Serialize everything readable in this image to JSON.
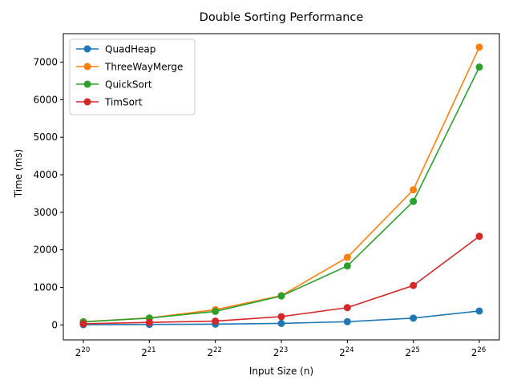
{
  "chart_data": {
    "type": "line",
    "title": "Double Sorting Performance",
    "xlabel": "Input Size (n)",
    "ylabel": "Time (ms)",
    "x_scale": "log2",
    "x_tick_base": "2",
    "x_tick_exponents": [
      "20",
      "21",
      "22",
      "23",
      "24",
      "25",
      "26"
    ],
    "x": [
      1048576,
      2097152,
      4194304,
      8388608,
      16777216,
      33554432,
      67108864
    ],
    "ylim": [
      -400,
      7760
    ],
    "y_ticks": [
      0,
      1000,
      2000,
      3000,
      4000,
      5000,
      6000,
      7000
    ],
    "grid": false,
    "legend_position": "top-left",
    "series": [
      {
        "name": "QuadHeap",
        "color": "#1f77b4",
        "values": [
          5,
          12,
          20,
          40,
          85,
          180,
          370
        ]
      },
      {
        "name": "ThreeWayMerge",
        "color": "#ff7f0e",
        "values": [
          85,
          185,
          405,
          780,
          1800,
          3600,
          7400
        ]
      },
      {
        "name": "QuickSort",
        "color": "#2ca02c",
        "values": [
          80,
          180,
          360,
          770,
          1570,
          3290,
          6870
        ]
      },
      {
        "name": "TimSort",
        "color": "#d62728",
        "values": [
          30,
          65,
          100,
          220,
          460,
          1050,
          2360
        ]
      }
    ]
  }
}
